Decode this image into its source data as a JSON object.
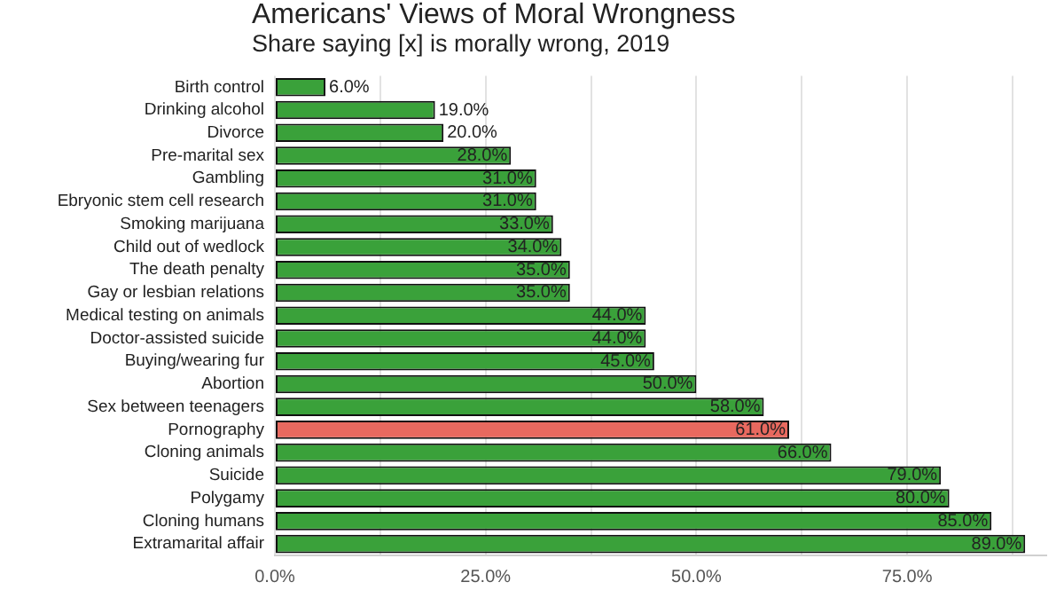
{
  "chart_data": {
    "type": "bar",
    "orientation": "horizontal",
    "title": "Americans' Views of Moral Wrongness",
    "subtitle": "Share saying [x] is morally wrong, 2019",
    "categories": [
      "Birth control",
      "Drinking alcohol",
      "Divorce",
      "Pre-marital sex",
      "Gambling",
      "Ebryonic stem cell research",
      "Smoking marijuana",
      "Child out of wedlock",
      "The death penalty",
      "Gay or lesbian relations",
      "Medical testing on animals",
      "Doctor-assisted suicide",
      "Buying/wearing fur",
      "Abortion",
      "Sex between teenagers",
      "Pornography",
      "Cloning animals",
      "Suicide",
      "Polygamy",
      "Cloning humans",
      "Extramarital affair"
    ],
    "values": [
      6,
      19,
      20,
      28,
      31,
      31,
      33,
      34,
      35,
      35,
      44,
      44,
      45,
      50,
      58,
      61,
      66,
      79,
      80,
      85,
      89
    ],
    "colors": [
      "#3aa13a",
      "#3aa13a",
      "#3aa13a",
      "#3aa13a",
      "#3aa13a",
      "#3aa13a",
      "#3aa13a",
      "#3aa13a",
      "#3aa13a",
      "#3aa13a",
      "#3aa13a",
      "#3aa13a",
      "#3aa13a",
      "#3aa13a",
      "#3aa13a",
      "#e8695f",
      "#3aa13a",
      "#3aa13a",
      "#3aa13a",
      "#3aa13a",
      "#3aa13a"
    ],
    "value_labels": [
      "6.0%",
      "19.0%",
      "20.0%",
      "28.0%",
      "31.0%",
      "31.0%",
      "33.0%",
      "34.0%",
      "35.0%",
      "35.0%",
      "44.0%",
      "44.0%",
      "45.0%",
      "50.0%",
      "58.0%",
      "61.0%",
      "66.0%",
      "79.0%",
      "80.0%",
      "85.0%",
      "89.0%"
    ],
    "xlim": [
      0,
      91.5
    ],
    "xticks": [
      {
        "value": 0,
        "label": "0.0%"
      },
      {
        "value": 12.5,
        "label": null
      },
      {
        "value": 25,
        "label": "25.0%"
      },
      {
        "value": 37.5,
        "label": null
      },
      {
        "value": 50,
        "label": "50.0%"
      },
      {
        "value": 62.5,
        "label": null
      },
      {
        "value": 75,
        "label": "75.0%"
      },
      {
        "value": 87.5,
        "label": null
      }
    ],
    "grid": "x",
    "legend": false
  }
}
